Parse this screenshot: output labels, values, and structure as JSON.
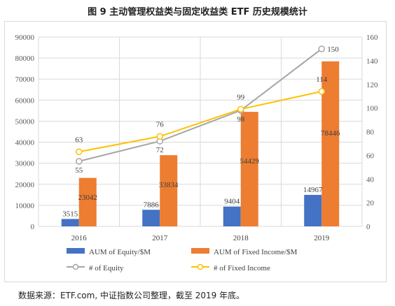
{
  "title": "图 9 主动管理权益类与固定收益类 ETF 历史规模统计",
  "source": "数据来源：ETF.com, 中证指数公司整理，截至 2019 年底。",
  "chart_data": {
    "type": "bar+line",
    "categories": [
      "2016",
      "2017",
      "2018",
      "2019"
    ],
    "bar_series": [
      {
        "name": "AUM of Equity/$M",
        "color": "#4472c4",
        "values": [
          3515,
          7886,
          9404,
          14967
        ]
      },
      {
        "name": "AUM of Fixed Income/$M",
        "color": "#ed7d31",
        "values": [
          23042,
          33834,
          54429,
          78446
        ]
      }
    ],
    "line_series": [
      {
        "name": "# of Equity",
        "color": "#a5a5a5",
        "values": [
          55,
          72,
          98,
          150
        ]
      },
      {
        "name": "# of Fixed Income",
        "color": "#ffc000",
        "values": [
          63,
          76,
          99,
          114
        ]
      }
    ],
    "y_left": {
      "min": 0,
      "max": 90000,
      "ticks": [
        "0",
        "10000",
        "20000",
        "30000",
        "40000",
        "50000",
        "60000",
        "70000",
        "80000",
        "90000"
      ]
    },
    "y_right": {
      "min": 0,
      "max": 160,
      "ticks": [
        "0",
        "20",
        "40",
        "60",
        "80",
        "100",
        "120",
        "140",
        "160"
      ]
    },
    "grid": true,
    "legend_position": "bottom"
  }
}
